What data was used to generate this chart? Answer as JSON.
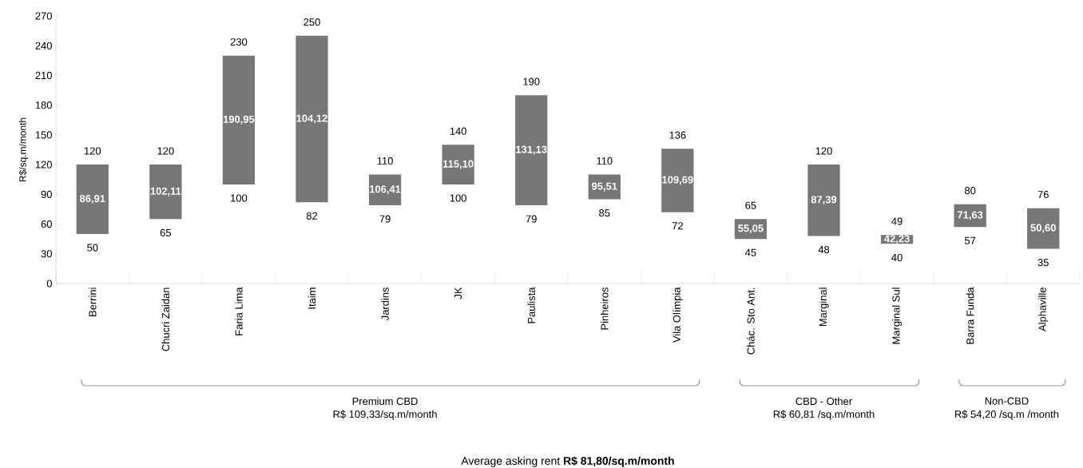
{
  "chart_data": {
    "type": "bar",
    "ylabel": "R$/sq.m/month",
    "color": "#777777",
    "categories": [
      "Berrini",
      "Chucri Zaidan",
      "Faria Lima",
      "Itaim",
      "Jardins",
      "JK",
      "Paulista",
      "Pinheiros",
      "Vila Olímpia",
      "Chác. Sto Ant.",
      "Marginal",
      "Marginal Sul",
      "Barra Funda",
      "Alphaville"
    ],
    "base": [
      50,
      65,
      100,
      82,
      79,
      100,
      79,
      85,
      72,
      45,
      48,
      40,
      57,
      35
    ],
    "values": [
      70,
      55,
      130,
      168,
      31,
      40,
      111,
      25,
      64,
      20,
      72,
      9,
      23,
      41
    ],
    "ylim": [
      0,
      270
    ],
    "yticks": [
      0,
      30,
      60,
      90,
      120,
      150,
      180,
      210,
      240,
      270
    ],
    "annotations": [
      {
        "text": "120",
        "x": "Berrini",
        "y": 120
      },
      {
        "text": "50",
        "x": "Berrini",
        "y": 50
      },
      {
        "text": "120",
        "x": "Chucri Zaidan",
        "y": 120
      },
      {
        "text": "65",
        "x": "Chucri Zaidan",
        "y": 65
      },
      {
        "text": "230",
        "x": "Faria Lima",
        "y": 230
      },
      {
        "text": "100",
        "x": "Faria Lima",
        "y": 100
      },
      {
        "text": "250",
        "x": "Itaim",
        "y": 250
      },
      {
        "text": "82",
        "x": "Itaim",
        "y": 82
      },
      {
        "text": "110",
        "x": "Jardins",
        "y": 110
      },
      {
        "text": "79",
        "x": "Jardins",
        "y": 79
      },
      {
        "text": "140",
        "x": "JK",
        "y": 140
      },
      {
        "text": "100",
        "x": "JK",
        "y": 100
      },
      {
        "text": "190",
        "x": "Paulista",
        "y": 190
      },
      {
        "text": "79",
        "x": "Paulista",
        "y": 79
      },
      {
        "text": "110",
        "x": "Pinheiros",
        "y": 110
      },
      {
        "text": "85",
        "x": "Pinheiros",
        "y": 85
      },
      {
        "text": "136",
        "x": "Vila Olímpia",
        "y": 136
      },
      {
        "text": "72",
        "x": "Vila Olímpia",
        "y": 72
      },
      {
        "text": "65",
        "x": "Chác. Sto Ant.",
        "y": 65
      },
      {
        "text": "45",
        "x": "Chác. Sto Ant.",
        "y": 45
      },
      {
        "text": "120",
        "x": "Marginal",
        "y": 120
      },
      {
        "text": "48",
        "x": "Marginal",
        "y": 48
      },
      {
        "text": "49",
        "x": "Marginal Sul",
        "y": 49
      },
      {
        "text": "40",
        "x": "Marginal Sul",
        "y": 40
      },
      {
        "text": "80",
        "x": "Barra Funda",
        "y": 80
      },
      {
        "text": "57",
        "x": "Barra Funda",
        "y": 57
      },
      {
        "text": "76",
        "x": "Alphaville",
        "y": 76
      },
      {
        "text": "35",
        "x": "Alphaville",
        "y": 35
      },
      "86,91",
      "102,11",
      "190,95",
      "104,12",
      "106,41",
      "115,10",
      "131,13",
      "95,51",
      "109,69",
      "55,05",
      "87,39",
      "42,23",
      "71,63",
      "50,60",
      "Premium CBD",
      "R$ 109,33/sq.m/month",
      "CBD - Other",
      "R$ 60,81 /sq.m/month",
      "Non-CBD",
      "R$ 54,20 /sq.m /month",
      "Average asking rent **R$ 81,80/sq.m/month**"
    ]
  }
}
